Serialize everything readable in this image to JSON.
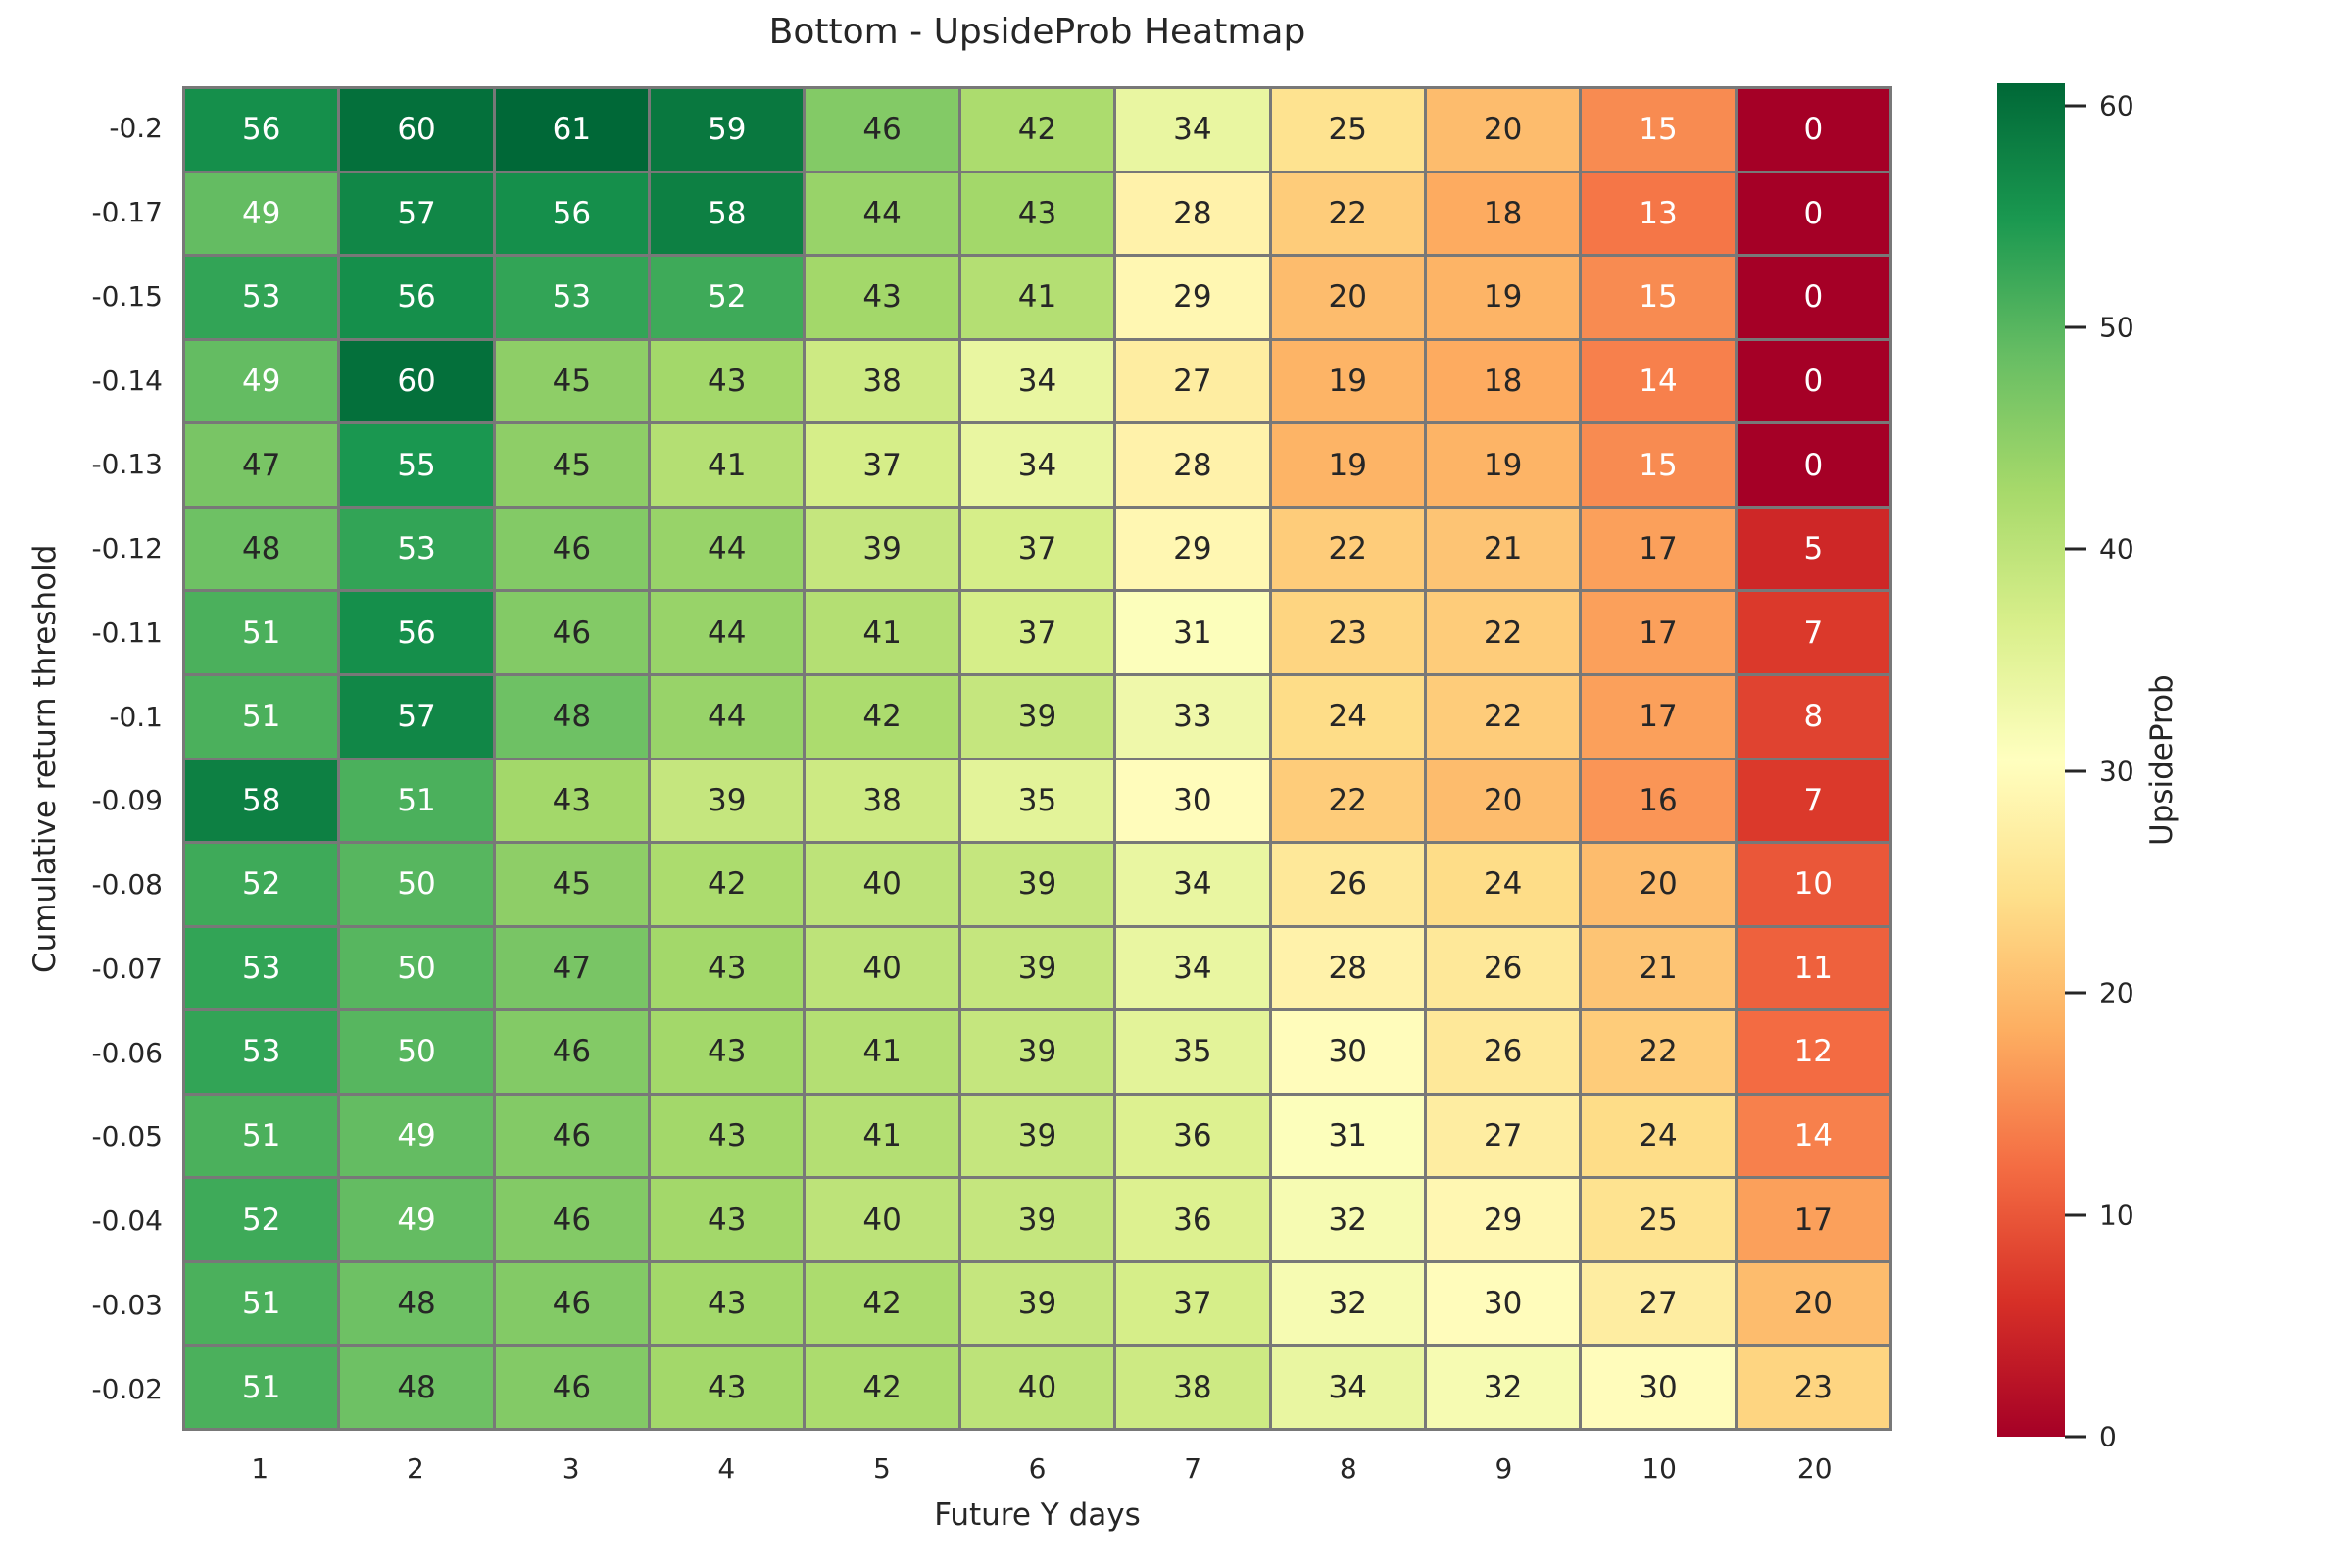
{
  "title": "Bottom - UpsideProb Heatmap",
  "chart_data": {
    "type": "heatmap",
    "title": "Bottom - UpsideProb Heatmap",
    "xlabel": "Future Y days",
    "ylabel": "Cumulative return threshold",
    "x_categories": [
      "1",
      "2",
      "3",
      "4",
      "5",
      "6",
      "7",
      "8",
      "9",
      "10",
      "20"
    ],
    "y_categories": [
      "-0.2",
      "-0.17",
      "-0.15",
      "-0.14",
      "-0.13",
      "-0.12",
      "-0.11",
      "-0.1",
      "-0.09",
      "-0.08",
      "-0.07",
      "-0.06",
      "-0.05",
      "-0.04",
      "-0.03",
      "-0.02"
    ],
    "values": [
      [
        56,
        60,
        61,
        59,
        46,
        42,
        34,
        25,
        20,
        15,
        0
      ],
      [
        49,
        57,
        56,
        58,
        44,
        43,
        28,
        22,
        18,
        13,
        0
      ],
      [
        53,
        56,
        53,
        52,
        43,
        41,
        29,
        20,
        19,
        15,
        0
      ],
      [
        49,
        60,
        45,
        43,
        38,
        34,
        27,
        19,
        18,
        14,
        0
      ],
      [
        47,
        55,
        45,
        41,
        37,
        34,
        28,
        19,
        19,
        15,
        0
      ],
      [
        48,
        53,
        46,
        44,
        39,
        37,
        29,
        22,
        21,
        17,
        5
      ],
      [
        51,
        56,
        46,
        44,
        41,
        37,
        31,
        23,
        22,
        17,
        7
      ],
      [
        51,
        57,
        48,
        44,
        42,
        39,
        33,
        24,
        22,
        17,
        8
      ],
      [
        58,
        51,
        43,
        39,
        38,
        35,
        30,
        22,
        20,
        16,
        7
      ],
      [
        52,
        50,
        45,
        42,
        40,
        39,
        34,
        26,
        24,
        20,
        10
      ],
      [
        53,
        50,
        47,
        43,
        40,
        39,
        34,
        28,
        26,
        21,
        11
      ],
      [
        53,
        50,
        46,
        43,
        41,
        39,
        35,
        30,
        26,
        22,
        12
      ],
      [
        51,
        49,
        46,
        43,
        41,
        39,
        36,
        31,
        27,
        24,
        14
      ],
      [
        52,
        49,
        46,
        43,
        40,
        39,
        36,
        32,
        29,
        25,
        17
      ],
      [
        51,
        48,
        46,
        43,
        42,
        39,
        37,
        32,
        30,
        27,
        20
      ],
      [
        51,
        48,
        46,
        43,
        42,
        40,
        38,
        34,
        32,
        30,
        23
      ]
    ],
    "vmin": 0,
    "vmax": 61,
    "colormap": {
      "name": "RdYlGn",
      "anchors": [
        "#a50026",
        "#d73027",
        "#f46d43",
        "#fdae61",
        "#fee08b",
        "#ffffbf",
        "#d9ef8b",
        "#a6d96a",
        "#66bd63",
        "#1a9850",
        "#006837"
      ]
    },
    "colorbar": {
      "label": "UpsideProb",
      "ticks": [
        0,
        10,
        20,
        30,
        40,
        50,
        60
      ]
    },
    "grid": false,
    "legend_position": "right-colorbar",
    "annotation_colors": {
      "dark": "#262626",
      "light": "#ffffff"
    },
    "cell_border_color": "#787878"
  }
}
